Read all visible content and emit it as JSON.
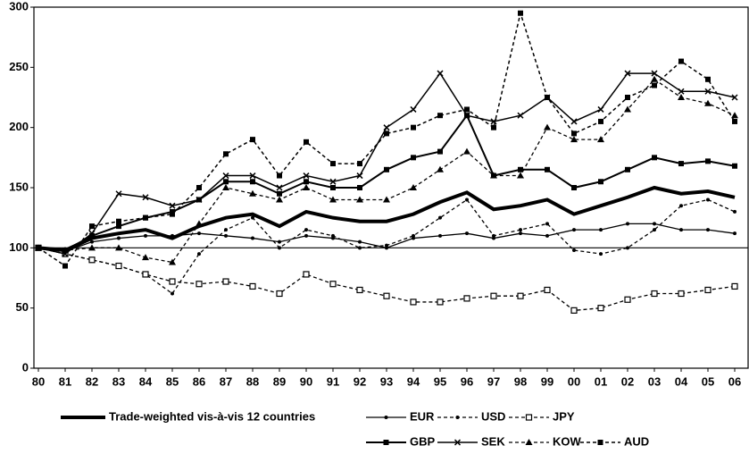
{
  "chart_data": {
    "type": "line",
    "categories": [
      "80",
      "81",
      "82",
      "83",
      "84",
      "85",
      "86",
      "87",
      "88",
      "89",
      "90",
      "91",
      "92",
      "93",
      "94",
      "95",
      "96",
      "97",
      "98",
      "99",
      "00",
      "01",
      "02",
      "03",
      "04",
      "05",
      "06"
    ],
    "ylim": [
      0,
      300
    ],
    "yticks": [
      0,
      50,
      100,
      150,
      200,
      250,
      300
    ],
    "hline": 100,
    "series": [
      {
        "name": "Trade-weighted vis-à-vis 12 countries",
        "color": "#000000",
        "width": 4,
        "dash": false,
        "marker": "none",
        "values": [
          100,
          98,
          108,
          112,
          115,
          108,
          118,
          125,
          128,
          118,
          130,
          125,
          122,
          122,
          128,
          138,
          146,
          132,
          135,
          140,
          128,
          135,
          142,
          150,
          145,
          147,
          142
        ]
      },
      {
        "name": "EUR",
        "color": "#000000",
        "width": 1.3,
        "dash": false,
        "marker": "dot",
        "values": [
          100,
          97,
          105,
          108,
          110,
          110,
          112,
          110,
          108,
          105,
          110,
          108,
          105,
          100,
          108,
          110,
          112,
          108,
          112,
          110,
          115,
          115,
          120,
          120,
          115,
          115,
          112
        ]
      },
      {
        "name": "USD",
        "color": "#000000",
        "width": 1.3,
        "dash": true,
        "marker": "dot",
        "values": [
          100,
          95,
          90,
          85,
          78,
          62,
          95,
          115,
          125,
          100,
          115,
          110,
          100,
          102,
          110,
          125,
          140,
          110,
          115,
          120,
          98,
          95,
          100,
          115,
          135,
          140,
          130
        ]
      },
      {
        "name": "JPY",
        "color": "#000000",
        "width": 1.3,
        "dash": true,
        "marker": "square-open",
        "values": [
          100,
          95,
          90,
          85,
          78,
          72,
          70,
          72,
          68,
          62,
          78,
          70,
          65,
          60,
          55,
          55,
          58,
          60,
          60,
          65,
          48,
          50,
          57,
          62,
          62,
          65,
          68
        ]
      },
      {
        "name": "GBP",
        "color": "#000000",
        "width": 2,
        "dash": false,
        "marker": "square",
        "values": [
          100,
          98,
          110,
          118,
          125,
          130,
          140,
          155,
          155,
          145,
          155,
          150,
          150,
          165,
          175,
          180,
          210,
          160,
          165,
          165,
          150,
          155,
          165,
          175,
          170,
          172,
          168
        ]
      },
      {
        "name": "SEK",
        "color": "#000000",
        "width": 1.5,
        "dash": false,
        "marker": "x",
        "values": [
          100,
          95,
          112,
          145,
          142,
          135,
          140,
          160,
          160,
          150,
          160,
          155,
          160,
          200,
          215,
          245,
          210,
          205,
          210,
          225,
          205,
          215,
          245,
          245,
          230,
          230,
          225
        ]
      },
      {
        "name": "KOW",
        "color": "#000000",
        "width": 1.3,
        "dash": true,
        "marker": "triangle",
        "values": [
          100,
          98,
          100,
          100,
          92,
          88,
          120,
          150,
          145,
          140,
          150,
          140,
          140,
          140,
          150,
          165,
          180,
          160,
          160,
          200,
          190,
          190,
          215,
          240,
          225,
          220,
          210
        ]
      },
      {
        "name": "AUD",
        "color": "#000000",
        "width": 1.5,
        "dash": true,
        "marker": "square",
        "values": [
          100,
          85,
          118,
          122,
          125,
          128,
          150,
          178,
          190,
          160,
          188,
          170,
          170,
          195,
          200,
          210,
          215,
          200,
          295,
          225,
          195,
          205,
          225,
          235,
          255,
          240,
          205
        ]
      }
    ]
  }
}
